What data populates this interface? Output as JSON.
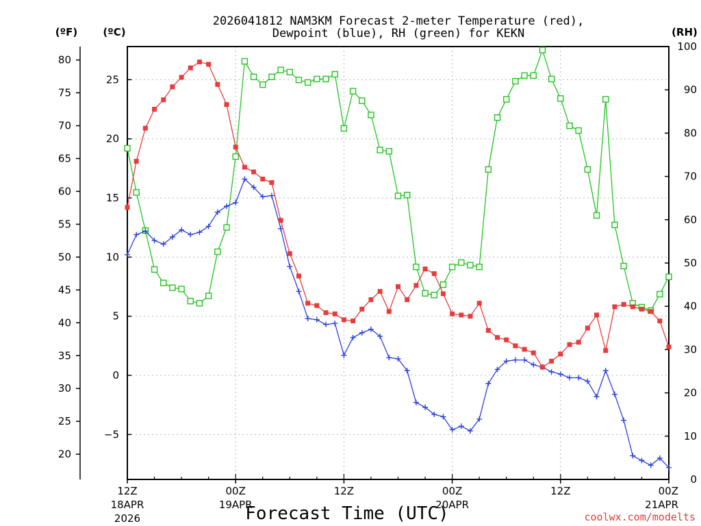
{
  "chart_data": {
    "type": "line",
    "title_line1": "2026041812 NAM3KM Forecast 2-meter Temperature (red),",
    "title_line2": "Dewpoint (blue), RH (green) for KEKN",
    "xlabel": "Forecast Time (UTC)",
    "credit": "coolwx.com/modelts",
    "unit_f": "(ºF)",
    "unit_c": "(ºC)",
    "unit_rh": "(RH)",
    "x_range_hours": [
      0,
      60
    ],
    "ylim_c": [
      -8.8,
      27.8
    ],
    "ylim_rh": [
      0,
      100
    ],
    "f_ticks": [
      "20",
      "25",
      "30",
      "35",
      "40",
      "45",
      "50",
      "55",
      "60",
      "65",
      "70",
      "75",
      "80"
    ],
    "c_ticks": [
      "-5",
      "0",
      "5",
      "10",
      "15",
      "20",
      "25"
    ],
    "rh_ticks": [
      "0",
      "10",
      "20",
      "30",
      "40",
      "50",
      "60",
      "70",
      "80",
      "90",
      "100"
    ],
    "x_ticks": [
      {
        "hour": 0,
        "line1": "12Z",
        "line2": "18APR",
        "line3": "2026"
      },
      {
        "hour": 12,
        "line1": "00Z",
        "line2": "19APR",
        "line3": ""
      },
      {
        "hour": 24,
        "line1": "12Z",
        "line2": "",
        "line3": ""
      },
      {
        "hour": 36,
        "line1": "00Z",
        "line2": "20APR",
        "line3": ""
      },
      {
        "hour": 48,
        "line1": "12Z",
        "line2": "",
        "line3": ""
      },
      {
        "hour": 60,
        "line1": "00Z",
        "line2": "21APR",
        "line3": ""
      }
    ],
    "hours": [
      0,
      1,
      2,
      3,
      4,
      5,
      6,
      7,
      8,
      9,
      10,
      11,
      12,
      13,
      14,
      15,
      16,
      17,
      18,
      19,
      20,
      21,
      22,
      23,
      24,
      25,
      26,
      27,
      28,
      29,
      30,
      31,
      32,
      33,
      34,
      35,
      36,
      37,
      38,
      39,
      40,
      41,
      42,
      43,
      44,
      45,
      46,
      47,
      48,
      49,
      50,
      51,
      52,
      53,
      54,
      55,
      56,
      57,
      58,
      59,
      60
    ],
    "series": [
      {
        "name": "2-meter Temperature (°C)",
        "color": "#e83c3c",
        "marker": "filled-square",
        "axis": "celsius",
        "values": [
          14.2,
          18.1,
          20.9,
          22.5,
          23.3,
          24.4,
          25.2,
          26.0,
          26.5,
          26.3,
          24.6,
          22.9,
          19.3,
          17.6,
          17.2,
          16.6,
          16.3,
          13.1,
          10.3,
          8.4,
          6.1,
          5.9,
          5.3,
          5.2,
          4.7,
          4.6,
          5.6,
          6.4,
          7.1,
          5.4,
          7.5,
          6.4,
          7.6,
          9.0,
          8.6,
          6.9,
          5.2,
          5.1,
          5.0,
          6.1,
          3.8,
          3.2,
          3.0,
          2.5,
          2.2,
          1.9,
          0.7,
          1.2,
          1.8,
          2.6,
          2.8,
          4.0,
          5.1,
          2.1,
          5.8,
          6.0,
          5.8,
          5.6,
          5.4,
          4.6,
          2.4
        ]
      },
      {
        "name": "Dewpoint (°C)",
        "color": "#2a3fe0",
        "marker": "plus",
        "axis": "celsius",
        "values": [
          10.2,
          11.9,
          12.2,
          11.4,
          11.1,
          11.7,
          12.3,
          11.9,
          12.1,
          12.6,
          13.8,
          14.3,
          14.6,
          16.6,
          15.9,
          15.1,
          15.2,
          12.4,
          9.2,
          7.1,
          4.8,
          4.7,
          4.3,
          4.4,
          1.7,
          3.2,
          3.6,
          3.9,
          3.3,
          1.5,
          1.4,
          0.4,
          -2.3,
          -2.7,
          -3.3,
          -3.5,
          -4.6,
          -4.3,
          -4.7,
          -3.7,
          -0.7,
          0.5,
          1.2,
          1.3,
          1.3,
          0.9,
          0.7,
          0.3,
          0.1,
          -0.2,
          -0.2,
          -0.5,
          -1.8,
          0.4,
          -1.6,
          -3.8,
          -6.8,
          -7.2,
          -7.6,
          -7.0,
          -7.8
        ]
      },
      {
        "name": "RH (%)",
        "color": "#21c421",
        "marker": "open-square",
        "axis": "rh",
        "values": [
          76.5,
          66.3,
          57.5,
          48.5,
          45.4,
          44.3,
          44.0,
          41.2,
          40.7,
          42.4,
          52.6,
          58.2,
          74.6,
          96.6,
          93.0,
          91.2,
          93.0,
          94.6,
          94.1,
          92.3,
          91.7,
          92.5,
          92.5,
          93.6,
          81.1,
          89.7,
          87.5,
          84.2,
          76.1,
          75.8,
          65.5,
          65.7,
          49.1,
          43.0,
          42.6,
          45.0,
          49.1,
          50.1,
          49.5,
          49.1,
          71.6,
          83.6,
          87.8,
          92.0,
          93.3,
          93.3,
          99.2,
          92.5,
          88.0,
          81.7,
          80.6,
          71.6,
          61.0,
          87.8,
          58.8,
          49.3,
          40.7,
          39.8,
          39.0,
          42.8,
          46.8
        ]
      }
    ]
  }
}
